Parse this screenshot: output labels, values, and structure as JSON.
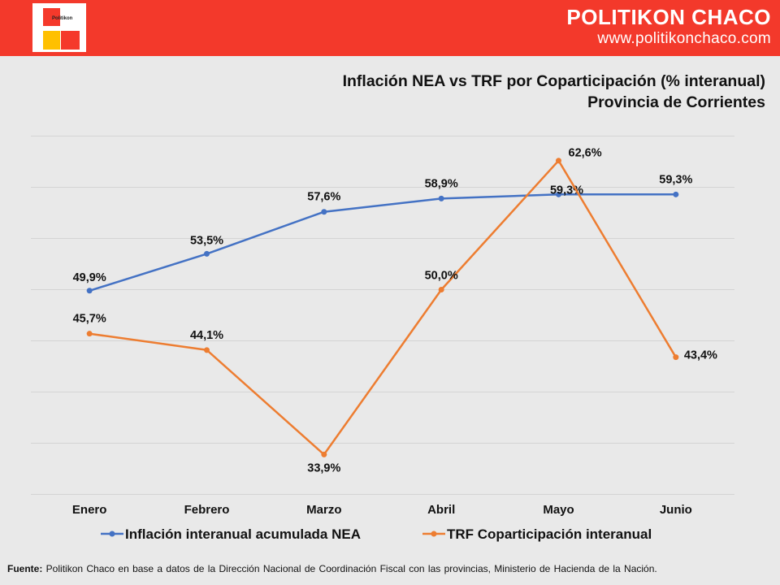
{
  "header": {
    "logo_text": "Politikon",
    "brand_name": "POLITIKON CHACO",
    "brand_url": "www.politikonchaco.com"
  },
  "colors": {
    "header_bg": "#f3392b",
    "series_nea": "#4472c4",
    "series_trf": "#ed7d31",
    "background": "#e9e9e9"
  },
  "chart_data": {
    "type": "line",
    "title": "Inflación NEA vs TRF por Coparticipación (% interanual)",
    "subtitle": "Provincia de Corrientes",
    "categories": [
      "Enero",
      "Febrero",
      "Marzo",
      "Abril",
      "Mayo",
      "Junio"
    ],
    "series": [
      {
        "name": "Inflación interanual acumulada NEA",
        "values": [
          49.9,
          53.5,
          57.6,
          58.9,
          59.3,
          59.3
        ],
        "labels": [
          "49,9%",
          "53,5%",
          "57,6%",
          "58,9%",
          "59,3%",
          "59,3%"
        ],
        "color": "#4472c4"
      },
      {
        "name": "TRF Coparticipación interanual",
        "values": [
          45.7,
          44.1,
          33.9,
          50.0,
          62.6,
          43.4
        ],
        "labels": [
          "45,7%",
          "44,1%",
          "33,9%",
          "50,0%",
          "62,6%",
          "43,4%"
        ],
        "color": "#ed7d31"
      }
    ],
    "ylim": [
      30,
      65
    ],
    "gridlines": true,
    "y_axis_labels_visible": false,
    "legend_position": "bottom"
  },
  "footer": {
    "source_label": "Fuente:",
    "source_text": " Politikon Chaco en base a datos de la Dirección Nacional de Coordinación Fiscal con las provincias, Ministerio de Hacienda de la Nación."
  }
}
